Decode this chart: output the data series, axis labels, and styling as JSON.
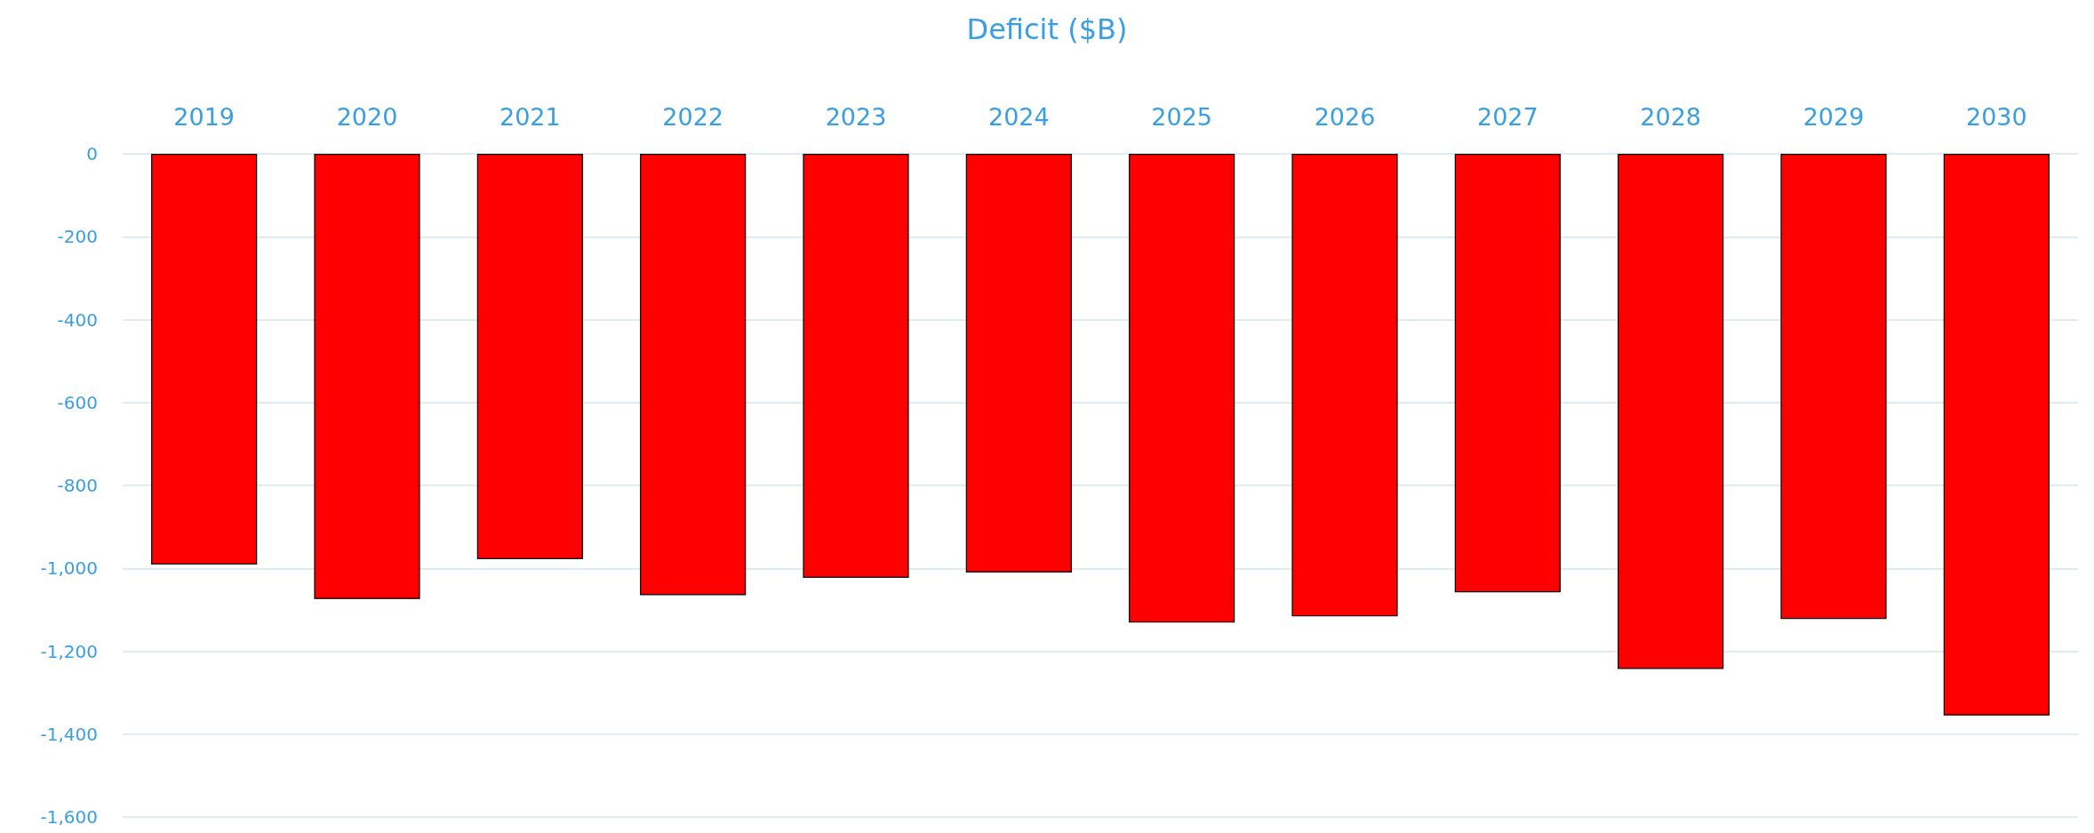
{
  "chart_data": {
    "type": "bar",
    "title": "Deficit ($B)",
    "categories": [
      "2019",
      "2020",
      "2021",
      "2022",
      "2023",
      "2024",
      "2025",
      "2026",
      "2027",
      "2028",
      "2029",
      "2030"
    ],
    "values": [
      -991,
      -1074,
      -978,
      -1065,
      -1023,
      -1010,
      -1131,
      -1116,
      -1058,
      -1243,
      -1122,
      -1355
    ],
    "color": "#ff0000",
    "ylim": [
      -1600,
      0
    ],
    "yticks": [
      0,
      -200,
      -400,
      -600,
      -800,
      {
        "value": -1000,
        "label": "-1,000"
      },
      {
        "value": -1200,
        "label": "-1,200"
      },
      {
        "value": -1400,
        "label": "-1,400"
      },
      {
        "value": -1600,
        "label": "-1,600"
      }
    ],
    "grid": "y"
  }
}
